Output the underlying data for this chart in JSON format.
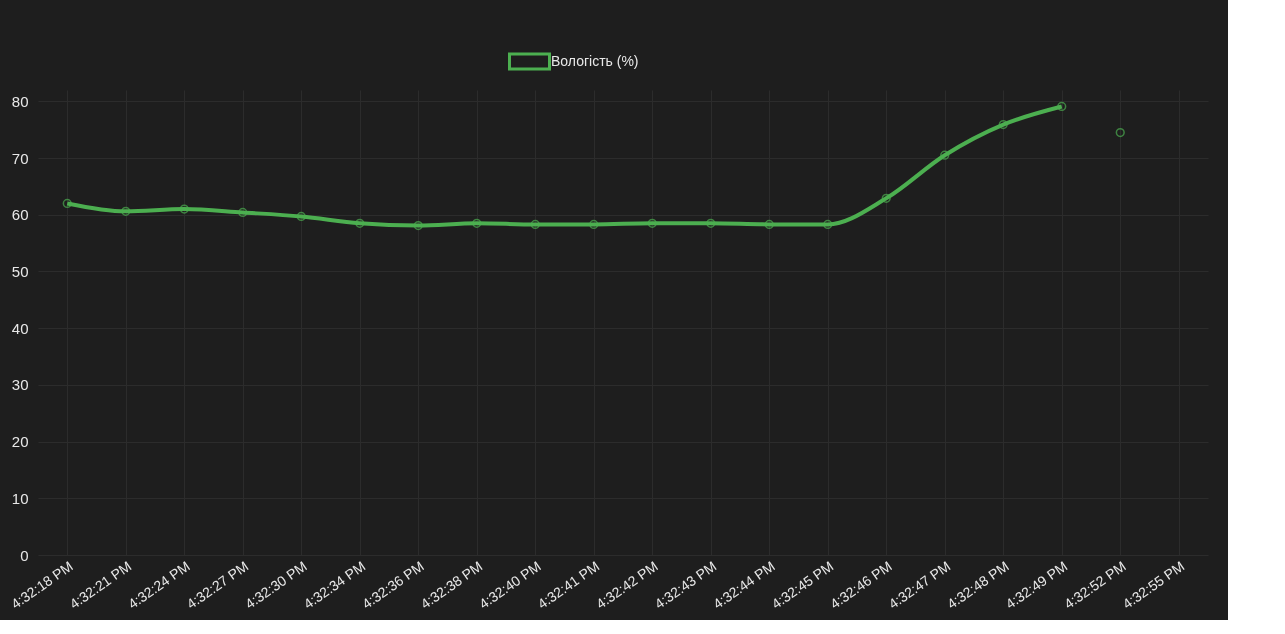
{
  "chart_data": {
    "type": "line",
    "categories": [
      "4:32:18 PM",
      "4:32:21 PM",
      "4:32:24 PM",
      "4:32:27 PM",
      "4:32:30 PM",
      "4:32:34 PM",
      "4:32:36 PM",
      "4:32:38 PM",
      "4:32:40 PM",
      "4:32:41 PM",
      "4:32:42 PM",
      "4:32:43 PM",
      "4:32:44 PM",
      "4:32:45 PM",
      "4:32:46 PM",
      "4:32:47 PM",
      "4:32:48 PM",
      "4:32:49 PM",
      "4:32:52 PM",
      "4:32:55 PM"
    ],
    "series": [
      {
        "name": "Вологість (%)",
        "color": "#4caf50",
        "values": [
          62.0,
          60.6,
          61.0,
          60.4,
          59.7,
          58.5,
          58.1,
          58.5,
          58.3,
          58.3,
          58.5,
          58.5,
          58.3,
          58.3,
          62.9,
          70.5,
          75.9,
          79.1,
          null,
          null
        ]
      },
      {
        "type": "scatter",
        "color": "#4caf50",
        "values": [
          null,
          null,
          null,
          null,
          null,
          null,
          null,
          null,
          null,
          null,
          null,
          null,
          null,
          null,
          null,
          null,
          null,
          null,
          74.5,
          null
        ]
      }
    ],
    "ylim": [
      0,
      82
    ],
    "yticks": [
      0,
      10,
      20,
      30,
      40,
      50,
      60,
      70,
      80
    ],
    "grid": true,
    "legend": "top",
    "marker": "circle",
    "line_style": "solid"
  }
}
